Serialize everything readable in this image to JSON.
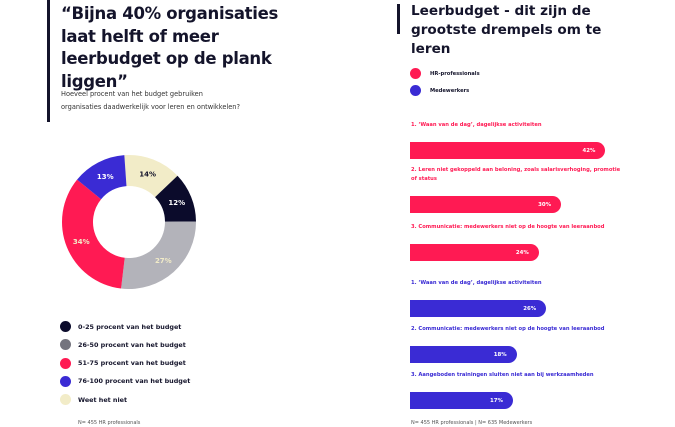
{
  "left": {
    "title": "“Bijna 40% organisaties laat helft of meer leerbudget op de plank liggen”",
    "subtitle": "Hoeveel procent van het budget gebruiken organisaties daadwerkelijk voor leren en ontwikkelen?",
    "donut": [
      {
        "label": "Weet het niet",
        "value": 14,
        "display": "14%",
        "color": "#f2ecc8",
        "text_color": "#14142b"
      },
      {
        "label": "0-25 procent van het budget",
        "value": 12,
        "display": "12%",
        "color": "#0b0b2b",
        "text_color": "#ffffff"
      },
      {
        "label": "26-50 procent van het budget",
        "value": 27,
        "display": "27%",
        "color": "#b3b3ba",
        "text_color": "#f2ecc8"
      },
      {
        "label": "51-75 procent van het budget",
        "value": 34,
        "display": "34%",
        "color": "#ff1a53",
        "text_color": "#f2ecc8"
      },
      {
        "label": "76-100 procent van het budget",
        "value": 13,
        "display": "13%",
        "color": "#3a2bd4",
        "text_color": "#ffffff"
      }
    ],
    "legend": [
      {
        "label": "0-25 procent van het budget",
        "color": "#0b0b2b"
      },
      {
        "label": "26-50 procent van het budget",
        "color": "#74747e"
      },
      {
        "label": "51-75 procent van het budget",
        "color": "#ff1a53"
      },
      {
        "label": "76-100 procent van het budget",
        "color": "#3a2bd4"
      },
      {
        "label": "Weet het niet",
        "color": "#f2ecc8"
      }
    ],
    "footnote": "N= 455 HR professionals"
  },
  "right": {
    "title": "Leerbudget - dit zijn de grootste drempels om te leren",
    "legend": [
      {
        "label": "HR-professionals",
        "color": "#ff1a53"
      },
      {
        "label": "Medewerkers",
        "color": "#3a2bd4"
      }
    ],
    "hr_bars": [
      {
        "label": "1. ‘Waan van de dag’, dagelijkse activiteiten",
        "value": 42,
        "display": "42%"
      },
      {
        "label": "2. Leren niet gekoppeld aan beloning, zoals salarisverhoging, promotie of status",
        "value": 30,
        "display": "30%"
      },
      {
        "label": "3. Communicatie: medewerkers niet op de hoogte van leeraanbod",
        "value": 24,
        "display": "24%"
      }
    ],
    "emp_bars": [
      {
        "label": "1. ‘Waan van de dag’, dagelijkse activiteiten",
        "value": 26,
        "display": "26%"
      },
      {
        "label": "2. Communicatie: medewerkers niet op de hoogte van leeraanbod",
        "value": 18,
        "display": "18%"
      },
      {
        "label": "3. Aangeboden trainingen sluiten niet aan bij werkzaamheden",
        "value": 17,
        "display": "17%"
      }
    ],
    "footnote": "N= 455 HR professionals | N= 635 Medewerkers"
  }
}
